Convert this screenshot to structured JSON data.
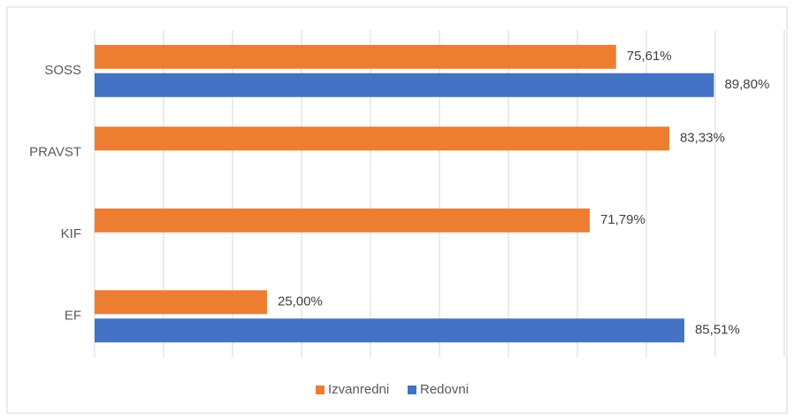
{
  "chart_data": {
    "type": "bar",
    "orientation": "horizontal",
    "categories": [
      "SOSS",
      "PRAVST",
      "KIF",
      "EF"
    ],
    "series": [
      {
        "name": "Izvanredni",
        "color": "#ed7d31",
        "values": [
          75.61,
          83.33,
          71.79,
          25.0
        ],
        "value_labels": [
          "75,61%",
          "83,33%",
          "71,79%",
          "25,00%"
        ]
      },
      {
        "name": "Redovni",
        "color": "#4472c4",
        "values": [
          89.8,
          null,
          null,
          85.51
        ],
        "value_labels": [
          "89,80%",
          null,
          null,
          "85,51%"
        ]
      }
    ],
    "xlim": [
      0,
      100
    ],
    "xticks": [
      0,
      10,
      20,
      30,
      40,
      50,
      60,
      70,
      80,
      90,
      100
    ],
    "grid": true,
    "legend": "bottom"
  }
}
